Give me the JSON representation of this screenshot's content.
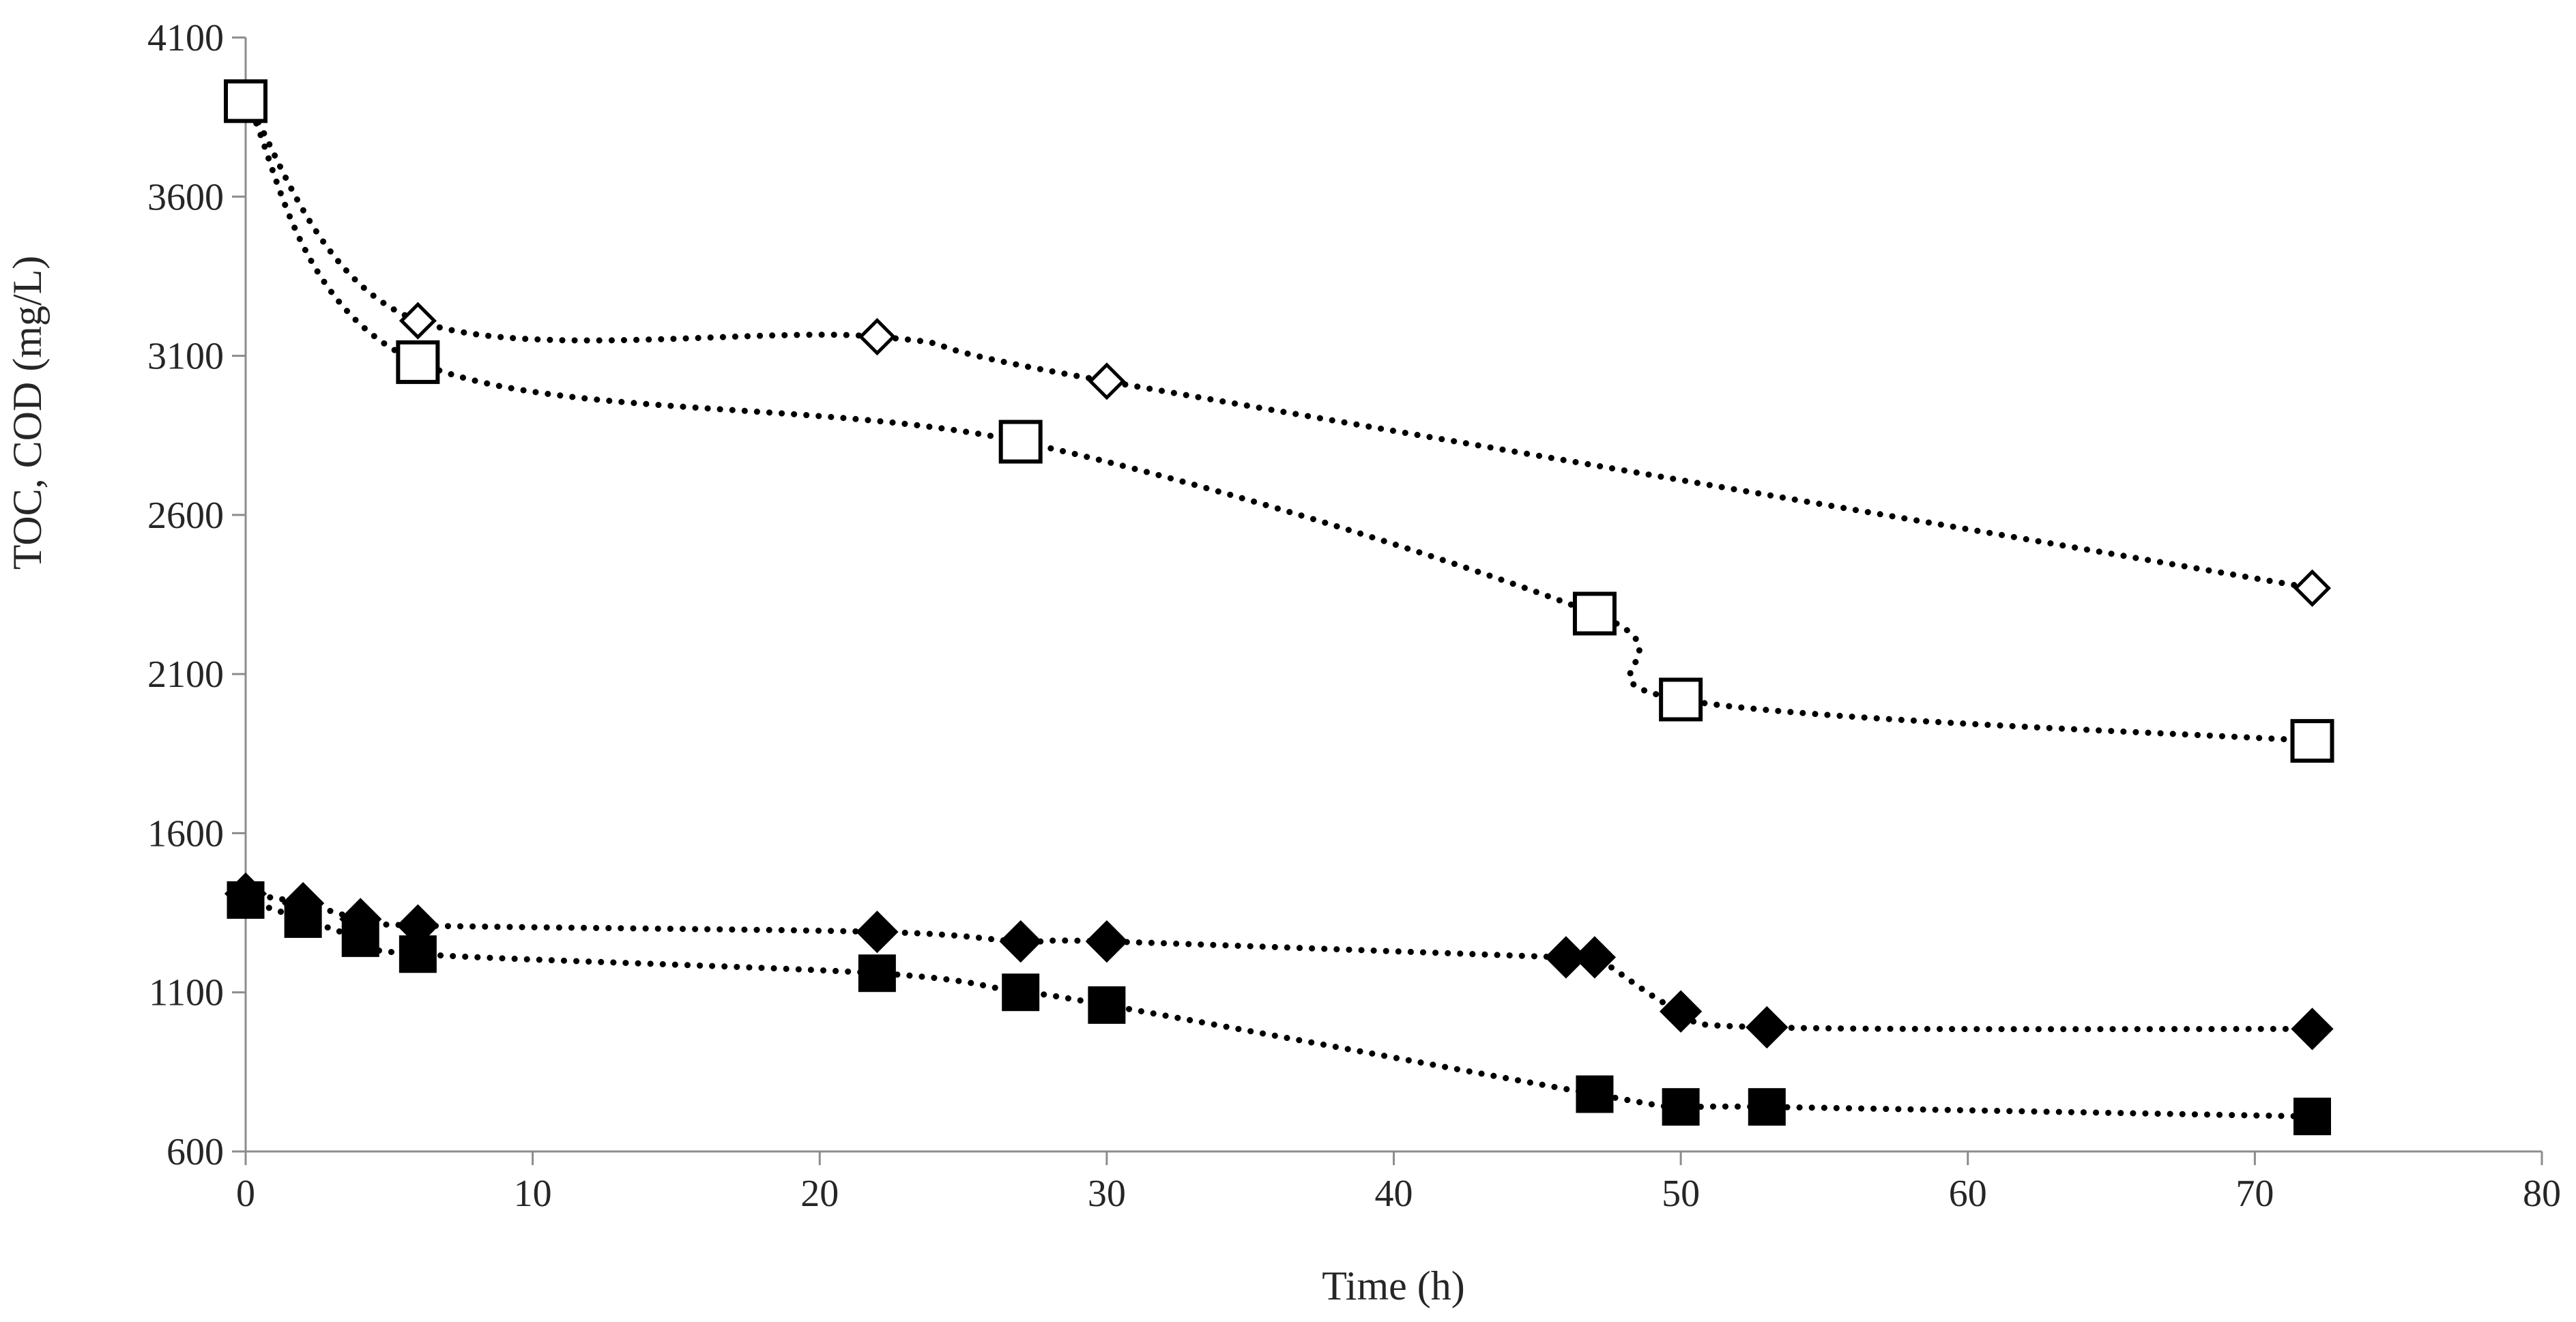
{
  "chart_data": {
    "type": "line",
    "title": "",
    "xlabel": "Time (h)",
    "ylabel": "TOC, COD  (mg/L)",
    "xlim": [
      0,
      80
    ],
    "ylim": [
      600,
      4100
    ],
    "x_ticks": [
      0,
      10,
      20,
      30,
      40,
      50,
      60,
      70,
      80
    ],
    "y_ticks": [
      600,
      1100,
      1600,
      2100,
      2600,
      3100,
      3600,
      4100
    ],
    "x_tick_labels": [
      "0",
      "10",
      "20",
      "30",
      "40",
      "50",
      "60",
      "70",
      "80"
    ],
    "y_tick_labels": [
      "600",
      "1100",
      "1600",
      "2100",
      "2600",
      "3100",
      "3600",
      "4100"
    ],
    "grid": false,
    "legend": "none",
    "series": [
      {
        "name": "open-diamond",
        "marker": "diamond",
        "filled": false,
        "x": [
          0,
          6,
          22,
          30,
          72
        ],
        "y": [
          3900,
          3210,
          3160,
          3020,
          2370
        ]
      },
      {
        "name": "open-square",
        "marker": "square",
        "filled": false,
        "x": [
          0,
          6,
          27,
          47,
          50,
          72
        ],
        "y": [
          3900,
          3080,
          2830,
          2290,
          2020,
          1890
        ]
      },
      {
        "name": "filled-diamond",
        "marker": "diamond",
        "filled": true,
        "x": [
          0,
          2,
          4,
          6,
          22,
          27,
          30,
          46,
          47,
          50,
          53,
          72
        ],
        "y": [
          1410,
          1380,
          1330,
          1310,
          1290,
          1260,
          1260,
          1210,
          1210,
          1040,
          990,
          985
        ]
      },
      {
        "name": "filled-square",
        "marker": "square",
        "filled": true,
        "x": [
          0,
          2,
          4,
          6,
          22,
          27,
          30,
          47,
          50,
          53,
          72
        ],
        "y": [
          1390,
          1330,
          1270,
          1220,
          1160,
          1100,
          1060,
          780,
          740,
          740,
          710
        ]
      }
    ]
  }
}
